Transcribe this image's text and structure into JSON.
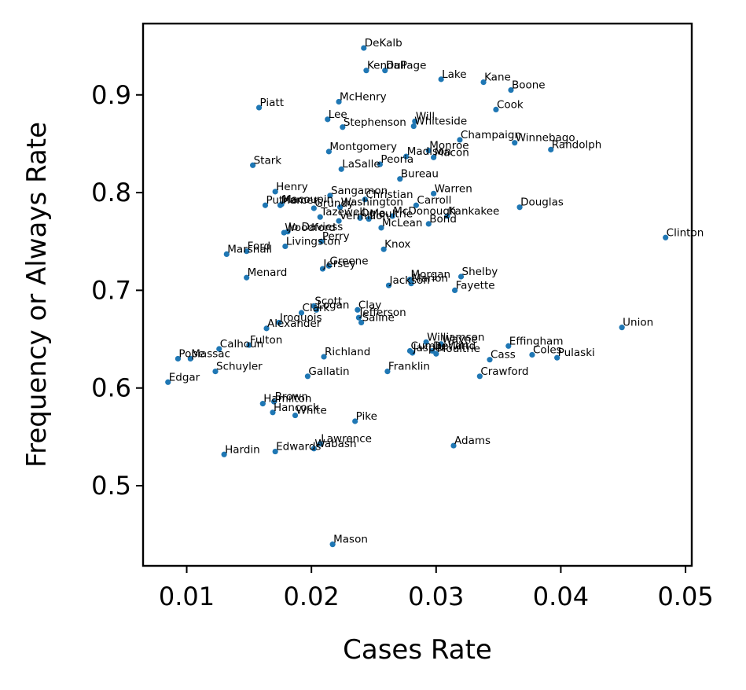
{
  "chart_data": {
    "type": "scatter",
    "title": "",
    "xlabel": "Cases Rate",
    "ylabel": "Frequency or Always Rate",
    "xlim": [
      0.0065,
      0.0505
    ],
    "ylim": [
      0.418,
      0.973
    ],
    "xticks": [
      0.01,
      0.02,
      0.03,
      0.04,
      0.05
    ],
    "xtick_labels": [
      "0.01",
      "0.02",
      "0.03",
      "0.04",
      "0.05"
    ],
    "yticks": [
      0.5,
      0.6,
      0.7,
      0.8,
      0.9
    ],
    "ytick_labels": [
      "0.5",
      "0.6",
      "0.7",
      "0.8",
      "0.9"
    ],
    "grid": false,
    "point_color": "#1f77b4",
    "points": [
      {
        "label": "DeKalb",
        "x": 0.0242,
        "y": 0.948
      },
      {
        "label": "Kendall",
        "x": 0.0244,
        "y": 0.925
      },
      {
        "label": "DuPage",
        "x": 0.0259,
        "y": 0.925
      },
      {
        "label": "Lake",
        "x": 0.0304,
        "y": 0.916
      },
      {
        "label": "Kane",
        "x": 0.0338,
        "y": 0.913
      },
      {
        "label": "Boone",
        "x": 0.036,
        "y": 0.905
      },
      {
        "label": "McHenry",
        "x": 0.0222,
        "y": 0.893
      },
      {
        "label": "Piatt",
        "x": 0.0158,
        "y": 0.887
      },
      {
        "label": "Cook",
        "x": 0.0348,
        "y": 0.885
      },
      {
        "label": "Lee",
        "x": 0.0213,
        "y": 0.875
      },
      {
        "label": "Will",
        "x": 0.0283,
        "y": 0.873
      },
      {
        "label": "Stephenson",
        "x": 0.0225,
        "y": 0.867
      },
      {
        "label": "Whiteside",
        "x": 0.0282,
        "y": 0.868
      },
      {
        "label": "Champaign",
        "x": 0.0319,
        "y": 0.854
      },
      {
        "label": "Winnebago",
        "x": 0.0363,
        "y": 0.851
      },
      {
        "label": "Randolph",
        "x": 0.0392,
        "y": 0.844
      },
      {
        "label": "Montgomery",
        "x": 0.0214,
        "y": 0.842
      },
      {
        "label": "Monroe",
        "x": 0.0294,
        "y": 0.843
      },
      {
        "label": "Madison",
        "x": 0.0276,
        "y": 0.837
      },
      {
        "label": "Macon",
        "x": 0.0298,
        "y": 0.836
      },
      {
        "label": "Peoria",
        "x": 0.0255,
        "y": 0.829
      },
      {
        "label": "Stark",
        "x": 0.0153,
        "y": 0.828
      },
      {
        "label": "LaSalle",
        "x": 0.0224,
        "y": 0.824
      },
      {
        "label": "Bureau",
        "x": 0.0271,
        "y": 0.814
      },
      {
        "label": "Henry",
        "x": 0.0171,
        "y": 0.801
      },
      {
        "label": "Sangamon",
        "x": 0.0215,
        "y": 0.797
      },
      {
        "label": "Christian",
        "x": 0.0243,
        "y": 0.793
      },
      {
        "label": "Warren",
        "x": 0.0298,
        "y": 0.799
      },
      {
        "label": "Douglas",
        "x": 0.0367,
        "y": 0.785
      },
      {
        "label": "Putnam",
        "x": 0.0163,
        "y": 0.787
      },
      {
        "label": "Macoupin",
        "x": 0.0176,
        "y": 0.788
      },
      {
        "label": "Mercer",
        "x": 0.0175,
        "y": 0.787
      },
      {
        "label": "Grundy",
        "x": 0.0202,
        "y": 0.784
      },
      {
        "label": "Washington",
        "x": 0.0223,
        "y": 0.785
      },
      {
        "label": "Carroll",
        "x": 0.0284,
        "y": 0.787
      },
      {
        "label": "Kankakee",
        "x": 0.0309,
        "y": 0.776
      },
      {
        "label": "Tazewell",
        "x": 0.0207,
        "y": 0.775
      },
      {
        "label": "Vermilion",
        "x": 0.0222,
        "y": 0.771
      },
      {
        "label": "Ogle",
        "x": 0.0239,
        "y": 0.774
      },
      {
        "label": "Moultrie",
        "x": 0.0246,
        "y": 0.773
      },
      {
        "label": "McDonough",
        "x": 0.0265,
        "y": 0.776
      },
      {
        "label": "Bond",
        "x": 0.0294,
        "y": 0.768
      },
      {
        "label": "McLean",
        "x": 0.0256,
        "y": 0.764
      },
      {
        "label": "Woodford",
        "x": 0.0178,
        "y": 0.759
      },
      {
        "label": "Jo Daviess",
        "x": 0.0181,
        "y": 0.76
      },
      {
        "label": "Clinton",
        "x": 0.0484,
        "y": 0.754
      },
      {
        "label": "Perry",
        "x": 0.0208,
        "y": 0.75
      },
      {
        "label": "Livingston",
        "x": 0.0179,
        "y": 0.745
      },
      {
        "label": "Ford",
        "x": 0.0148,
        "y": 0.74
      },
      {
        "label": "Marshall",
        "x": 0.0132,
        "y": 0.737
      },
      {
        "label": "Knox",
        "x": 0.0258,
        "y": 0.742
      },
      {
        "label": "Greene",
        "x": 0.0214,
        "y": 0.725
      },
      {
        "label": "Jersey",
        "x": 0.0209,
        "y": 0.722
      },
      {
        "label": "Shelby",
        "x": 0.032,
        "y": 0.714
      },
      {
        "label": "Menard",
        "x": 0.0148,
        "y": 0.713
      },
      {
        "label": "Morgan",
        "x": 0.0279,
        "y": 0.711
      },
      {
        "label": "Marion",
        "x": 0.028,
        "y": 0.707
      },
      {
        "label": "Jackson",
        "x": 0.0262,
        "y": 0.705
      },
      {
        "label": "Fayette",
        "x": 0.0315,
        "y": 0.7
      },
      {
        "label": "Scott",
        "x": 0.0202,
        "y": 0.684
      },
      {
        "label": "Logan",
        "x": 0.0204,
        "y": 0.68
      },
      {
        "label": "Clark",
        "x": 0.0192,
        "y": 0.677
      },
      {
        "label": "Clay",
        "x": 0.0237,
        "y": 0.68
      },
      {
        "label": "Jefferson",
        "x": 0.0238,
        "y": 0.672
      },
      {
        "label": "Saline",
        "x": 0.024,
        "y": 0.667
      },
      {
        "label": "Iroquois",
        "x": 0.0174,
        "y": 0.667
      },
      {
        "label": "Alexander",
        "x": 0.0164,
        "y": 0.661
      },
      {
        "label": "Union",
        "x": 0.0449,
        "y": 0.662
      },
      {
        "label": "Williamson",
        "x": 0.0292,
        "y": 0.647
      },
      {
        "label": "Wayne",
        "x": 0.0304,
        "y": 0.645
      },
      {
        "label": "Fulton",
        "x": 0.015,
        "y": 0.644
      },
      {
        "label": "Calhoun",
        "x": 0.0126,
        "y": 0.64
      },
      {
        "label": "Effingham",
        "x": 0.0358,
        "y": 0.643
      },
      {
        "label": "Cumberland",
        "x": 0.0279,
        "y": 0.638
      },
      {
        "label": "DeWitt",
        "x": 0.0297,
        "y": 0.638
      },
      {
        "label": "Jasper",
        "x": 0.0281,
        "y": 0.636
      },
      {
        "label": "Richland",
        "x": 0.021,
        "y": 0.632
      },
      {
        "label": "Moultrie",
        "x": 0.03,
        "y": 0.635
      },
      {
        "label": "Coles",
        "x": 0.0377,
        "y": 0.634
      },
      {
        "label": "Pulaski",
        "x": 0.0397,
        "y": 0.631
      },
      {
        "label": "Pope",
        "x": 0.0093,
        "y": 0.63
      },
      {
        "label": "Massac",
        "x": 0.0103,
        "y": 0.63
      },
      {
        "label": "Cass",
        "x": 0.0343,
        "y": 0.629
      },
      {
        "label": "Franklin",
        "x": 0.0261,
        "y": 0.617
      },
      {
        "label": "Schuyler",
        "x": 0.0123,
        "y": 0.617
      },
      {
        "label": "Gallatin",
        "x": 0.0197,
        "y": 0.612
      },
      {
        "label": "Crawford",
        "x": 0.0335,
        "y": 0.612
      },
      {
        "label": "Edgar",
        "x": 0.0085,
        "y": 0.606
      },
      {
        "label": "Brown",
        "x": 0.017,
        "y": 0.586
      },
      {
        "label": "Hamilton",
        "x": 0.0161,
        "y": 0.584
      },
      {
        "label": "Hancock",
        "x": 0.0169,
        "y": 0.575
      },
      {
        "label": "White",
        "x": 0.0187,
        "y": 0.572
      },
      {
        "label": "Pike",
        "x": 0.0235,
        "y": 0.566
      },
      {
        "label": "Lawrence",
        "x": 0.0207,
        "y": 0.543
      },
      {
        "label": "Wabash",
        "x": 0.0202,
        "y": 0.538
      },
      {
        "label": "Adams",
        "x": 0.0314,
        "y": 0.541
      },
      {
        "label": "Edwards",
        "x": 0.0171,
        "y": 0.535
      },
      {
        "label": "Hardin",
        "x": 0.013,
        "y": 0.532
      },
      {
        "label": "Mason",
        "x": 0.0217,
        "y": 0.44
      }
    ]
  }
}
